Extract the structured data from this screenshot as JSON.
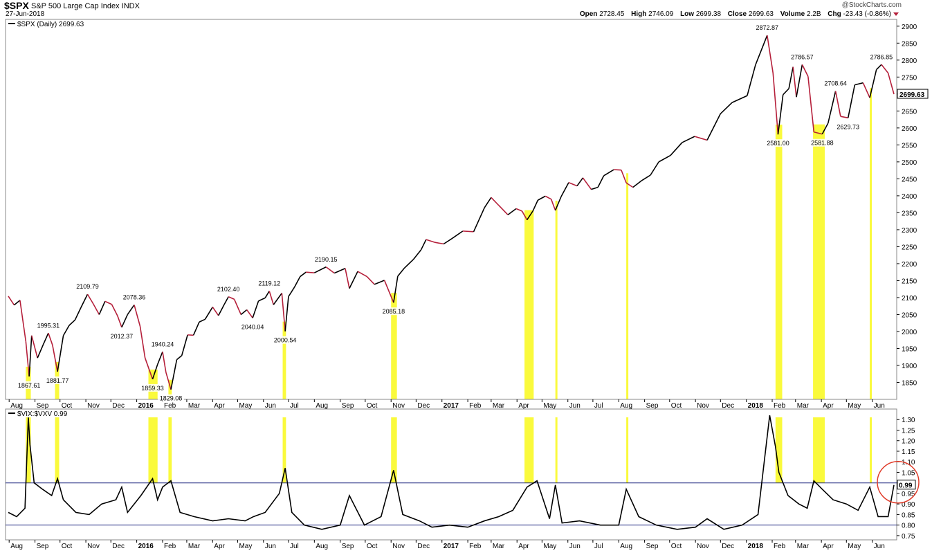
{
  "header": {
    "symbol": "$SPX",
    "name": "S&P 500 Large Cap Index  INDX",
    "date": "27-Jun-2018",
    "logo": "@StockCharts.com",
    "open_label": "Open",
    "open": "2728.45",
    "high_label": "High",
    "high": "2746.09",
    "low_label": "Low",
    "low": "2699.38",
    "close_label": "Close",
    "close": "2699.63",
    "volume_label": "Volume",
    "volume": "2.2B",
    "chg_label": "Chg",
    "chg": "-23.43 (-0.86%)"
  },
  "colors": {
    "price_up": "#000000",
    "price_down": "#b51f3a",
    "highlight": "#fafa3c",
    "hline": "#1a237e",
    "circle": "#e03c2a",
    "grid": "#000000"
  },
  "chart_data": [
    {
      "type": "line",
      "title": "$SPX (Daily) 2699.63",
      "ylim": [
        1800,
        2920
      ],
      "yticks": [
        1850,
        1900,
        1950,
        2000,
        2050,
        2100,
        2150,
        2200,
        2250,
        2300,
        2350,
        2400,
        2450,
        2500,
        2550,
        2600,
        2650,
        2700,
        2750,
        2800,
        2850,
        2900
      ],
      "last_label": "2699.63",
      "series": [
        {
          "x": [
            "2015-07-31",
            "2015-08-07",
            "2015-08-14",
            "2015-08-21",
            "2015-08-25",
            "2015-08-28",
            "2015-09-04",
            "2015-09-11",
            "2015-09-17",
            "2015-09-22",
            "2015-09-28",
            "2015-10-05",
            "2015-10-12",
            "2015-10-19",
            "2015-10-26",
            "2015-11-03",
            "2015-11-10",
            "2015-11-17",
            "2015-11-24",
            "2015-12-02",
            "2015-12-09",
            "2015-12-14",
            "2015-12-21",
            "2015-12-29",
            "2016-01-05",
            "2016-01-11",
            "2016-01-20",
            "2016-01-26",
            "2016-02-01",
            "2016-02-05",
            "2016-02-11",
            "2016-02-18",
            "2016-02-24",
            "2016-03-02",
            "2016-03-09",
            "2016-03-16",
            "2016-03-23",
            "2016-04-01",
            "2016-04-08",
            "2016-04-15",
            "2016-04-20",
            "2016-04-27",
            "2016-05-05",
            "2016-05-12",
            "2016-05-19",
            "2016-05-26",
            "2016-06-03",
            "2016-06-08",
            "2016-06-13",
            "2016-06-23",
            "2016-06-27",
            "2016-07-01",
            "2016-07-08",
            "2016-07-15",
            "2016-07-22",
            "2016-08-01",
            "2016-08-15",
            "2016-08-25",
            "2016-09-07",
            "2016-09-12",
            "2016-09-22",
            "2016-10-03",
            "2016-10-12",
            "2016-10-24",
            "2016-11-04",
            "2016-11-09",
            "2016-11-17",
            "2016-11-28",
            "2016-12-07",
            "2016-12-13",
            "2016-12-23",
            "2017-01-03",
            "2017-01-13",
            "2017-01-26",
            "2017-02-08",
            "2017-02-21",
            "2017-03-01",
            "2017-03-10",
            "2017-03-21",
            "2017-03-31",
            "2017-04-07",
            "2017-04-13",
            "2017-04-20",
            "2017-04-26",
            "2017-05-05",
            "2017-05-12",
            "2017-05-17",
            "2017-05-24",
            "2017-06-02",
            "2017-06-12",
            "2017-06-19",
            "2017-06-29",
            "2017-07-07",
            "2017-07-14",
            "2017-07-26",
            "2017-08-04",
            "2017-08-10",
            "2017-08-18",
            "2017-08-28",
            "2017-09-08",
            "2017-09-18",
            "2017-10-02",
            "2017-10-16",
            "2017-10-31",
            "2017-11-15",
            "2017-12-01",
            "2017-12-15",
            "2018-01-02",
            "2018-01-12",
            "2018-01-26",
            "2018-02-02",
            "2018-02-08",
            "2018-02-14",
            "2018-02-21",
            "2018-02-26",
            "2018-03-02",
            "2018-03-09",
            "2018-03-16",
            "2018-03-23",
            "2018-04-02",
            "2018-04-09",
            "2018-04-18",
            "2018-04-24",
            "2018-05-03",
            "2018-05-11",
            "2018-05-21",
            "2018-05-29",
            "2018-06-06",
            "2018-06-12",
            "2018-06-20",
            "2018-06-27"
          ],
          "y": [
            2104,
            2078,
            2092,
            1971,
            1867.61,
            1988,
            1922,
            1962,
            1995.31,
            1960,
            1881.77,
            1988,
            2018,
            2034,
            2070,
            2109.79,
            2081,
            2050,
            2089,
            2080,
            2046,
            2012.37,
            2050,
            2078.36,
            2016,
            1922,
            1859.33,
            1903,
            1940.24,
            1880,
            1829.08,
            1917,
            1929,
            1990,
            1989,
            2028,
            2036,
            2072,
            2047,
            2080,
            2102.4,
            2095,
            2050,
            2064,
            2040.04,
            2090,
            2099,
            2119.12,
            2079,
            2113,
            2000.54,
            2103,
            2130,
            2162,
            2175,
            2173,
            2190.15,
            2172,
            2186,
            2127,
            2177,
            2162,
            2139,
            2151,
            2085.18,
            2163,
            2187,
            2213,
            2241,
            2271,
            2263,
            2258,
            2274,
            2296,
            2294,
            2365,
            2395,
            2372,
            2344,
            2362,
            2355,
            2329,
            2355,
            2387,
            2399,
            2390,
            2357,
            2398,
            2439,
            2429,
            2453,
            2419,
            2425,
            2459,
            2477,
            2476,
            2438,
            2425,
            2444,
            2461,
            2500,
            2519,
            2557,
            2575,
            2564,
            2642,
            2675,
            2695,
            2786,
            2872.87,
            2762,
            2581,
            2698,
            2716,
            2780,
            2691,
            2786.57,
            2752,
            2588,
            2581.88,
            2614,
            2708.64,
            2634,
            2629.73,
            2727,
            2733,
            2689,
            2772,
            2786.85,
            2762,
            2699.63
          ],
          "labels": [
            [
              "2015-08-25",
              "1867.61",
              "below"
            ],
            [
              "2015-09-17",
              "1995.31",
              "above"
            ],
            [
              "2015-09-28",
              "1881.77",
              "below"
            ],
            [
              "2015-11-03",
              "2109.79",
              "above"
            ],
            [
              "2015-12-14",
              "2012.37",
              "below"
            ],
            [
              "2015-12-29",
              "2078.36",
              "above"
            ],
            [
              "2016-01-20",
              "1859.33",
              "below"
            ],
            [
              "2016-02-01",
              "1940.24",
              "above"
            ],
            [
              "2016-02-11",
              "1829.08",
              "below"
            ],
            [
              "2016-04-20",
              "2102.40",
              "above"
            ],
            [
              "2016-05-19",
              "2040.04",
              "below"
            ],
            [
              "2016-06-08",
              "2119.12",
              "above"
            ],
            [
              "2016-06-27",
              "2000.54",
              "below"
            ],
            [
              "2016-08-15",
              "2190.15",
              "above"
            ],
            [
              "2016-11-04",
              "2085.18",
              "below"
            ],
            [
              "2018-01-26",
              "2872.87",
              "above"
            ],
            [
              "2018-02-08",
              "2581.00",
              "below"
            ],
            [
              "2018-03-09",
              "2786.57",
              "above"
            ],
            [
              "2018-04-02",
              "2581.88",
              "below"
            ],
            [
              "2018-04-18",
              "2708.64",
              "above"
            ],
            [
              "2018-05-03",
              "2629.73",
              "below"
            ],
            [
              "2018-06-12",
              "2786.85",
              "above"
            ]
          ]
        }
      ],
      "xtick_labels": [
        "Aug",
        "Sep",
        "Oct",
        "Nov",
        "Dec",
        "2016",
        "Feb",
        "Mar",
        "Apr",
        "May",
        "Jun",
        "Jul",
        "Aug",
        "Sep",
        "Oct",
        "Nov",
        "Dec",
        "2017",
        "Feb",
        "Mar",
        "Apr",
        "May",
        "Jun",
        "Jul",
        "Aug",
        "Sep",
        "Oct",
        "Nov",
        "Dec",
        "2018",
        "Feb",
        "Mar",
        "Apr",
        "May",
        "Jun"
      ]
    },
    {
      "type": "line",
      "title": "$VIX:$VXV 0.99",
      "ylim": [
        0.73,
        1.35
      ],
      "yticks": [
        0.75,
        0.8,
        0.85,
        0.9,
        0.95,
        1.0,
        1.05,
        1.1,
        1.15,
        1.2,
        1.25,
        1.3
      ],
      "hlines": [
        1.0,
        0.8
      ],
      "last_label": "0.99",
      "series": [
        {
          "x": [
            "2015-07-31",
            "2015-08-10",
            "2015-08-20",
            "2015-08-24",
            "2015-08-26",
            "2015-08-31",
            "2015-09-10",
            "2015-09-21",
            "2015-09-28",
            "2015-10-05",
            "2015-10-20",
            "2015-11-05",
            "2015-11-20",
            "2015-12-07",
            "2015-12-14",
            "2015-12-21",
            "2016-01-06",
            "2016-01-20",
            "2016-01-26",
            "2016-02-01",
            "2016-02-11",
            "2016-02-22",
            "2016-03-10",
            "2016-04-01",
            "2016-04-20",
            "2016-05-10",
            "2016-05-20",
            "2016-06-03",
            "2016-06-20",
            "2016-06-27",
            "2016-07-05",
            "2016-07-20",
            "2016-08-10",
            "2016-09-01",
            "2016-09-12",
            "2016-09-30",
            "2016-10-20",
            "2016-11-04",
            "2016-11-15",
            "2016-12-05",
            "2016-12-20",
            "2017-01-10",
            "2017-02-01",
            "2017-02-21",
            "2017-03-10",
            "2017-03-27",
            "2017-04-13",
            "2017-04-25",
            "2017-05-10",
            "2017-05-17",
            "2017-05-25",
            "2017-06-15",
            "2017-07-10",
            "2017-08-01",
            "2017-08-10",
            "2017-08-25",
            "2017-09-15",
            "2017-10-10",
            "2017-11-01",
            "2017-11-15",
            "2017-12-05",
            "2017-12-27",
            "2018-01-15",
            "2018-01-29",
            "2018-02-05",
            "2018-02-09",
            "2018-02-20",
            "2018-03-05",
            "2018-03-15",
            "2018-03-23",
            "2018-04-02",
            "2018-04-15",
            "2018-05-01",
            "2018-05-15",
            "2018-05-29",
            "2018-06-08",
            "2018-06-20",
            "2018-06-27"
          ],
          "y": [
            0.86,
            0.84,
            0.88,
            1.31,
            1.18,
            1.0,
            0.97,
            0.94,
            1.02,
            0.92,
            0.86,
            0.85,
            0.9,
            0.92,
            0.98,
            0.86,
            0.94,
            1.02,
            0.92,
            0.98,
            1.01,
            0.86,
            0.84,
            0.82,
            0.83,
            0.82,
            0.84,
            0.86,
            0.95,
            1.07,
            0.86,
            0.8,
            0.78,
            0.8,
            0.94,
            0.8,
            0.84,
            1.06,
            0.85,
            0.82,
            0.79,
            0.8,
            0.79,
            0.82,
            0.84,
            0.87,
            0.98,
            1.01,
            0.83,
            0.99,
            0.81,
            0.82,
            0.8,
            0.8,
            0.97,
            0.84,
            0.8,
            0.78,
            0.79,
            0.83,
            0.78,
            0.8,
            0.85,
            1.32,
            1.17,
            1.05,
            0.94,
            0.9,
            0.88,
            1.01,
            0.97,
            0.92,
            0.9,
            0.87,
            0.98,
            0.84,
            0.84,
            0.99
          ]
        }
      ],
      "xtick_labels": [
        "Aug",
        "Sep",
        "Oct",
        "Nov",
        "Dec",
        "2016",
        "Feb",
        "Mar",
        "Apr",
        "May",
        "Jun",
        "Jul",
        "Aug",
        "Sep",
        "Oct",
        "Nov",
        "Dec",
        "2017",
        "Feb",
        "Mar",
        "Apr",
        "May",
        "Jun",
        "Jul",
        "Aug",
        "Sep",
        "Oct",
        "Nov",
        "Dec",
        "2018",
        "Feb",
        "Mar",
        "Apr",
        "May",
        "Jun"
      ]
    }
  ],
  "highlights": [
    [
      "2015-08-21",
      "2015-08-27"
    ],
    [
      "2015-09-25",
      "2015-09-30"
    ],
    [
      "2016-01-15",
      "2016-01-26"
    ],
    [
      "2016-02-08",
      "2016-02-12"
    ],
    [
      "2016-06-24",
      "2016-06-28"
    ],
    [
      "2016-11-01",
      "2016-11-08"
    ],
    [
      "2017-04-10",
      "2017-04-21"
    ],
    [
      "2017-05-17",
      "2017-05-18"
    ],
    [
      "2017-08-10",
      "2017-08-11"
    ],
    [
      "2018-02-05",
      "2018-02-13"
    ],
    [
      "2018-03-22",
      "2018-04-05"
    ],
    [
      "2018-05-29",
      "2018-05-30"
    ]
  ]
}
